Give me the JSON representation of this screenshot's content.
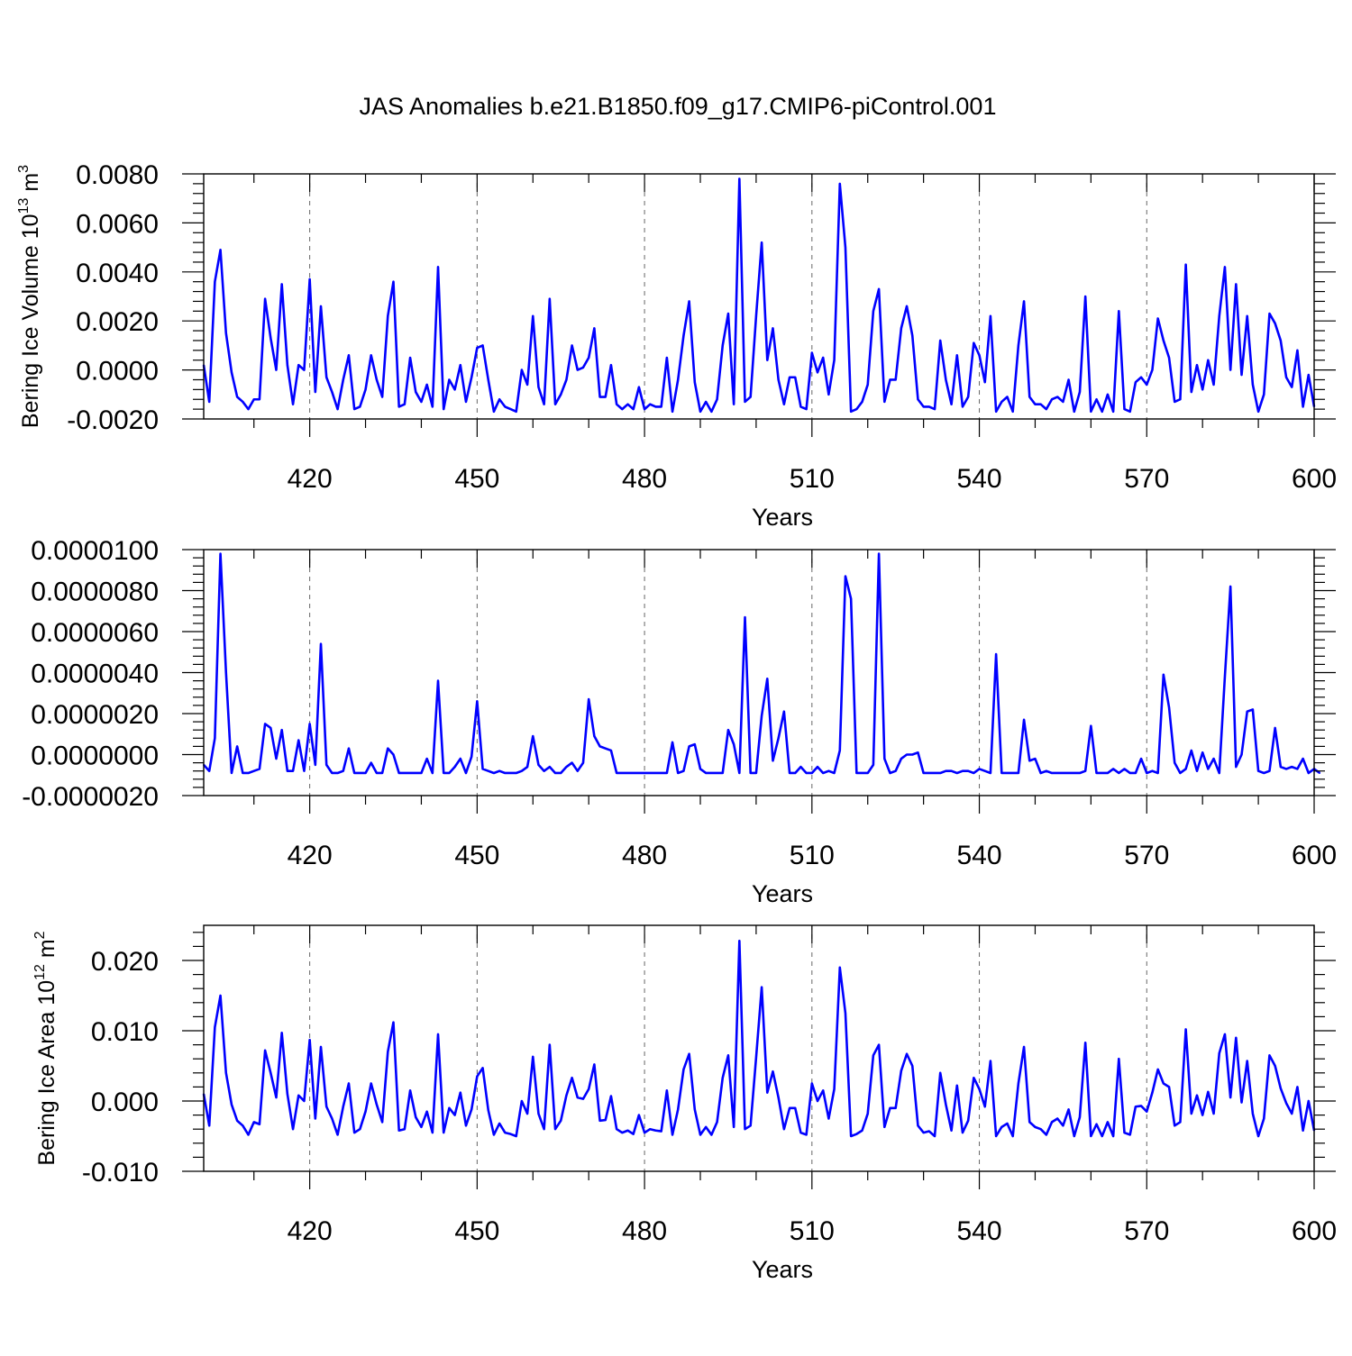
{
  "figure": {
    "title": "JAS Anomalies b.e21.B1850.f09_g17.CMIP6-piControl.001"
  },
  "style": {
    "line_color": "#0000ff",
    "axis_color": "#000000",
    "grid_color": "#666666",
    "background": "#ffffff"
  },
  "chart_data": [
    {
      "type": "line",
      "title": "",
      "xlabel": "Years",
      "ylabel_base": "Bering Ice Volume 10",
      "ylabel_exp": "13",
      "ylabel_unit": "m",
      "ylabel_unit_exp": "3",
      "xlim": [
        401,
        600
      ],
      "ylim": [
        -0.002,
        0.008
      ],
      "xticks": [
        420,
        450,
        480,
        510,
        540,
        570,
        600
      ],
      "yticks": [
        -0.002,
        0.0,
        0.002,
        0.004,
        0.006,
        0.008
      ],
      "ytick_labels": [
        "-0.0020",
        "0.0000",
        "0.0020",
        "0.0040",
        "0.0060",
        "0.0080"
      ],
      "vertical_grid": [
        420,
        450,
        480,
        510,
        540,
        570
      ],
      "x_start": 401,
      "series": [
        {
          "values": [
            0.0002,
            -0.0013,
            0.0036,
            0.0049,
            0.0015,
            -0.0001,
            -0.0011,
            -0.0013,
            -0.0016,
            -0.0012,
            -0.0012,
            0.0029,
            0.0013,
            0.0,
            0.0035,
            0.0002,
            -0.0014,
            0.0002,
            0.0,
            0.0037,
            -0.0009,
            0.0026,
            -0.0003,
            -0.0009,
            -0.0016,
            -0.0004,
            0.0006,
            -0.0016,
            -0.0015,
            -0.0008,
            0.0006,
            -0.0004,
            -0.0011,
            0.0022,
            0.0036,
            -0.0015,
            -0.0014,
            0.0005,
            -0.0009,
            -0.0013,
            -0.0006,
            -0.0015,
            0.0042,
            -0.0016,
            -0.0004,
            -0.0008,
            0.0002,
            -0.0013,
            -0.0003,
            0.0009,
            0.001,
            -0.0004,
            -0.0017,
            -0.0012,
            -0.0015,
            -0.0016,
            -0.0017,
            0.0,
            -0.0006,
            0.0022,
            -0.0007,
            -0.0014,
            0.0029,
            -0.0014,
            -0.001,
            -0.0004,
            0.001,
            0.0,
            0.0001,
            0.0005,
            0.0017,
            -0.0011,
            -0.0011,
            0.0002,
            -0.0014,
            -0.0016,
            -0.0014,
            -0.0016,
            -0.0007,
            -0.0016,
            -0.0014,
            -0.0015,
            -0.0015,
            0.0005,
            -0.0017,
            -0.0004,
            0.0014,
            0.0028,
            -0.0005,
            -0.0017,
            -0.0013,
            -0.0017,
            -0.0012,
            0.001,
            0.0023,
            -0.0014,
            0.0078,
            -0.0013,
            -0.0011,
            0.0022,
            0.0052,
            0.0004,
            0.0017,
            -0.0004,
            -0.0014,
            -0.0003,
            -0.0003,
            -0.0015,
            -0.0016,
            0.0007,
            -0.0001,
            0.0005,
            -0.001,
            0.0004,
            0.0076,
            0.005,
            -0.0017,
            -0.0016,
            -0.0013,
            -0.0006,
            0.0024,
            0.0033,
            -0.0013,
            -0.0004,
            -0.0004,
            0.0017,
            0.0026,
            0.0014,
            -0.0012,
            -0.0015,
            -0.0015,
            -0.0016,
            0.0012,
            -0.0004,
            -0.0014,
            0.0006,
            -0.0015,
            -0.0011,
            0.0011,
            0.0006,
            -0.0005,
            0.0022,
            -0.0017,
            -0.0013,
            -0.0011,
            -0.0017,
            0.001,
            0.0028,
            -0.0011,
            -0.0014,
            -0.0014,
            -0.0016,
            -0.0012,
            -0.0011,
            -0.0013,
            -0.0004,
            -0.0017,
            -0.0009,
            0.003,
            -0.0017,
            -0.0012,
            -0.0017,
            -0.001,
            -0.0017,
            0.0024,
            -0.0016,
            -0.0017,
            -0.0005,
            -0.0003,
            -0.0006,
            0.0,
            0.0021,
            0.0012,
            0.0005,
            -0.0013,
            -0.0012,
            0.0043,
            -0.0009,
            0.0002,
            -0.0008,
            0.0004,
            -0.0006,
            0.0022,
            0.0042,
            0.0,
            0.0035,
            -0.0002,
            0.0022,
            -0.0006,
            -0.0017,
            -0.001,
            0.0023,
            0.0019,
            0.0012,
            -0.0003,
            -0.0007,
            0.0008,
            -0.0015,
            -0.0002,
            -0.0015
          ]
        }
      ]
    },
    {
      "type": "line",
      "title": "",
      "xlabel": "Years",
      "ylabel_base": "",
      "ylabel_exp": "",
      "ylabel_unit": "",
      "ylabel_unit_exp": "",
      "xlim": [
        401,
        600
      ],
      "ylim": [
        -2e-06,
        1e-05
      ],
      "xticks": [
        420,
        450,
        480,
        510,
        540,
        570,
        600
      ],
      "yticks": [
        -2e-06,
        0.0,
        2e-06,
        4e-06,
        6e-06,
        8e-06,
        1e-05
      ],
      "ytick_labels": [
        "-0.0000020",
        "0.0000000",
        "0.0000020",
        "0.0000040",
        "0.0000060",
        "0.0000080",
        "0.0000100"
      ],
      "vertical_grid": [
        420,
        450,
        480,
        510,
        540,
        570
      ],
      "x_start": 401,
      "series": [
        {
          "values": [
            -5e-07,
            -8e-07,
            8e-07,
            9.8e-06,
            4e-06,
            -9e-07,
            4e-07,
            -9e-07,
            -9e-07,
            -8e-07,
            -7e-07,
            1.5e-06,
            1.3e-06,
            -2e-07,
            1.2e-06,
            -8e-07,
            -8e-07,
            7e-07,
            -8e-07,
            1.5e-06,
            -5e-07,
            5.4e-06,
            -5e-07,
            -9e-07,
            -9e-07,
            -8e-07,
            3e-07,
            -9e-07,
            -9e-07,
            -9e-07,
            -4e-07,
            -9e-07,
            -9e-07,
            3e-07,
            0.0,
            -9e-07,
            -9e-07,
            -9e-07,
            -9e-07,
            -9e-07,
            -2e-07,
            -9e-07,
            3.6e-06,
            -9e-07,
            -9e-07,
            -6e-07,
            -2e-07,
            -9e-07,
            -1e-07,
            2.6e-06,
            -7e-07,
            -8e-07,
            -9e-07,
            -8e-07,
            -9e-07,
            -9e-07,
            -9e-07,
            -8e-07,
            -6e-07,
            9e-07,
            -5e-07,
            -8e-07,
            -6e-07,
            -9e-07,
            -9e-07,
            -6e-07,
            -4e-07,
            -8e-07,
            -4e-07,
            2.7e-06,
            9e-07,
            4e-07,
            3e-07,
            2e-07,
            -9e-07,
            -9e-07,
            -9e-07,
            -9e-07,
            -9e-07,
            -9e-07,
            -9e-07,
            -9e-07,
            -9e-07,
            -9e-07,
            6e-07,
            -9e-07,
            -8e-07,
            4e-07,
            5e-07,
            -7e-07,
            -9e-07,
            -9e-07,
            -9e-07,
            -9e-07,
            1.2e-06,
            5e-07,
            -9e-07,
            6.7e-06,
            -9e-07,
            -9e-07,
            1.9e-06,
            3.7e-06,
            -3e-07,
            8e-07,
            2.1e-06,
            -9e-07,
            -9e-07,
            -6e-07,
            -9e-07,
            -9e-07,
            -6e-07,
            -9e-07,
            -8e-07,
            -9e-07,
            2e-07,
            8.7e-06,
            7.6e-06,
            -9e-07,
            -9e-07,
            -9e-07,
            -5e-07,
            9.8e-06,
            -2e-07,
            -9e-07,
            -8e-07,
            -2e-07,
            0.0,
            0.0,
            1e-07,
            -9e-07,
            -9e-07,
            -9e-07,
            -9e-07,
            -8e-07,
            -8e-07,
            -9e-07,
            -8e-07,
            -8e-07,
            -9e-07,
            -7e-07,
            -8e-07,
            -9e-07,
            4.9e-06,
            -9e-07,
            -9e-07,
            -9e-07,
            -9e-07,
            1.7e-06,
            -3e-07,
            -2e-07,
            -9e-07,
            -8e-07,
            -9e-07,
            -9e-07,
            -9e-07,
            -9e-07,
            -9e-07,
            -9e-07,
            -8e-07,
            1.4e-06,
            -9e-07,
            -9e-07,
            -9e-07,
            -7e-07,
            -9e-07,
            -7e-07,
            -9e-07,
            -9e-07,
            -2e-07,
            -9e-07,
            -8e-07,
            -9e-07,
            3.9e-06,
            2.3e-06,
            -4e-07,
            -9e-07,
            -7e-07,
            2e-07,
            -8e-07,
            1e-07,
            -7e-07,
            -2e-07,
            -9e-07,
            3.8e-06,
            8.2e-06,
            -6e-07,
            0.0,
            2.1e-06,
            2.2e-06,
            -8e-07,
            -9e-07,
            -8e-07,
            1.3e-06,
            -6e-07,
            -7e-07,
            -6e-07,
            -7e-07,
            -2e-07,
            -9e-07,
            -7e-07,
            -9e-07
          ]
        }
      ]
    },
    {
      "type": "line",
      "title": "",
      "xlabel": "Years",
      "ylabel_base": "Bering Ice Area 10",
      "ylabel_exp": "12",
      "ylabel_unit": "m",
      "ylabel_unit_exp": "2",
      "xlim": [
        401,
        600
      ],
      "ylim": [
        -0.01,
        0.025
      ],
      "xticks": [
        420,
        450,
        480,
        510,
        540,
        570,
        600
      ],
      "yticks": [
        -0.01,
        0.0,
        0.01,
        0.02
      ],
      "ytick_labels": [
        "-0.010",
        "0.000",
        "0.010",
        "0.020"
      ],
      "vertical_grid": [
        420,
        450,
        480,
        510,
        540,
        570
      ],
      "x_start": 401,
      "series": [
        {
          "values": [
            0.001,
            -0.0035,
            0.0105,
            0.015,
            0.004,
            -0.0005,
            -0.0028,
            -0.0035,
            -0.0048,
            -0.003,
            -0.0033,
            0.0072,
            0.004,
            0.0005,
            0.0097,
            0.001,
            -0.004,
            0.0008,
            0.0,
            0.0087,
            -0.0025,
            0.0077,
            -0.0008,
            -0.0025,
            -0.0048,
            -0.0008,
            0.0025,
            -0.0045,
            -0.004,
            -0.0015,
            0.0025,
            -0.0005,
            -0.003,
            0.007,
            0.0112,
            -0.0042,
            -0.004,
            0.0015,
            -0.0023,
            -0.0037,
            -0.0015,
            -0.0045,
            0.0095,
            -0.0045,
            -0.001,
            -0.002,
            0.0012,
            -0.0035,
            -0.0012,
            0.0035,
            0.0047,
            -0.0013,
            -0.0048,
            -0.0032,
            -0.0045,
            -0.0047,
            -0.005,
            0.0,
            -0.0018,
            0.0063,
            -0.0018,
            -0.004,
            0.008,
            -0.004,
            -0.0028,
            0.0008,
            0.0033,
            0.0005,
            0.0003,
            0.0017,
            0.0052,
            -0.0028,
            -0.0027,
            0.0007,
            -0.004,
            -0.0045,
            -0.0042,
            -0.0047,
            -0.002,
            -0.0045,
            -0.004,
            -0.0042,
            -0.0043,
            0.0015,
            -0.0048,
            -0.0012,
            0.0045,
            0.0067,
            -0.0012,
            -0.0048,
            -0.0037,
            -0.0048,
            -0.003,
            0.0033,
            0.0065,
            -0.0037,
            0.0228,
            -0.004,
            -0.0035,
            0.0062,
            0.0162,
            0.0012,
            0.0042,
            0.0005,
            -0.004,
            -0.001,
            -0.001,
            -0.0045,
            -0.0048,
            0.0025,
            0.0,
            0.0015,
            -0.0025,
            0.0017,
            0.019,
            0.0125,
            -0.005,
            -0.0047,
            -0.0042,
            -0.0018,
            0.0065,
            0.008,
            -0.0037,
            -0.001,
            -0.001,
            0.0043,
            0.0067,
            0.005,
            -0.0035,
            -0.0045,
            -0.0043,
            -0.005,
            0.004,
            -0.0005,
            -0.0042,
            0.0022,
            -0.0045,
            -0.0028,
            0.0033,
            0.0017,
            -0.0008,
            0.0057,
            -0.005,
            -0.0037,
            -0.0032,
            -0.005,
            0.0025,
            0.0077,
            -0.003,
            -0.0037,
            -0.004,
            -0.0048,
            -0.003,
            -0.0025,
            -0.0035,
            -0.0012,
            -0.005,
            -0.0023,
            0.0083,
            -0.005,
            -0.0033,
            -0.005,
            -0.003,
            -0.005,
            0.006,
            -0.0045,
            -0.0048,
            -0.0008,
            -0.0007,
            -0.0015,
            0.0012,
            0.0045,
            0.0025,
            0.002,
            -0.0035,
            -0.003,
            0.0102,
            -0.0018,
            0.0008,
            -0.002,
            0.0013,
            -0.0018,
            0.0068,
            0.0095,
            0.0005,
            0.009,
            -0.0002,
            0.0057,
            -0.0018,
            -0.005,
            -0.0025,
            0.0065,
            0.005,
            0.0018,
            -0.0003,
            -0.0018,
            0.002,
            -0.0042,
            0.0,
            -0.0042
          ]
        }
      ]
    }
  ]
}
